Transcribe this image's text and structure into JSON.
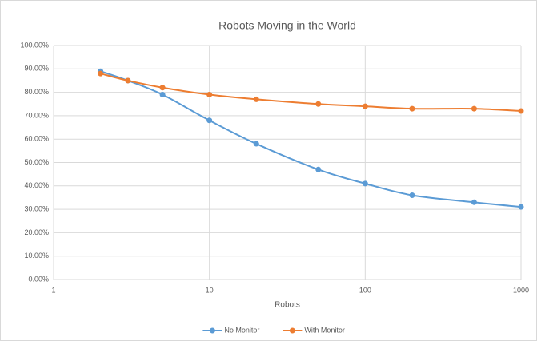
{
  "chart_data": {
    "type": "line",
    "title": "Robots Moving in the World",
    "x_label": "Robots",
    "x": [
      2,
      3,
      5,
      10,
      20,
      50,
      100,
      200,
      500,
      1000
    ],
    "series": [
      {
        "name": "No Monitor",
        "color": "#5b9bd5",
        "values": [
          89,
          85,
          79,
          68,
          58,
          47,
          41,
          36,
          33,
          31
        ]
      },
      {
        "name": "With Monitor",
        "color": "#ed7d31",
        "values": [
          88,
          85,
          82,
          79,
          77,
          75,
          74,
          73,
          73,
          72
        ]
      }
    ],
    "xscale": "log",
    "xlim": [
      1,
      1000
    ],
    "xticks": [
      1,
      10,
      100,
      1000
    ],
    "ylim": [
      0,
      100
    ],
    "yticks": [
      {
        "value": 0,
        "label": "0.00%"
      },
      {
        "value": 10,
        "label": "10.00%"
      },
      {
        "value": 20,
        "label": "20.00%"
      },
      {
        "value": 30,
        "label": "30.00%"
      },
      {
        "value": 40,
        "label": "40.00%"
      },
      {
        "value": 50,
        "label": "50.00%"
      },
      {
        "value": 60,
        "label": "60.00%"
      },
      {
        "value": 70,
        "label": "70.00%"
      },
      {
        "value": 80,
        "label": "80.00%"
      },
      {
        "value": 90,
        "label": "90.00%"
      },
      {
        "value": 100,
        "label": "100.00%"
      }
    ],
    "grid": true,
    "legend": "bottom"
  }
}
